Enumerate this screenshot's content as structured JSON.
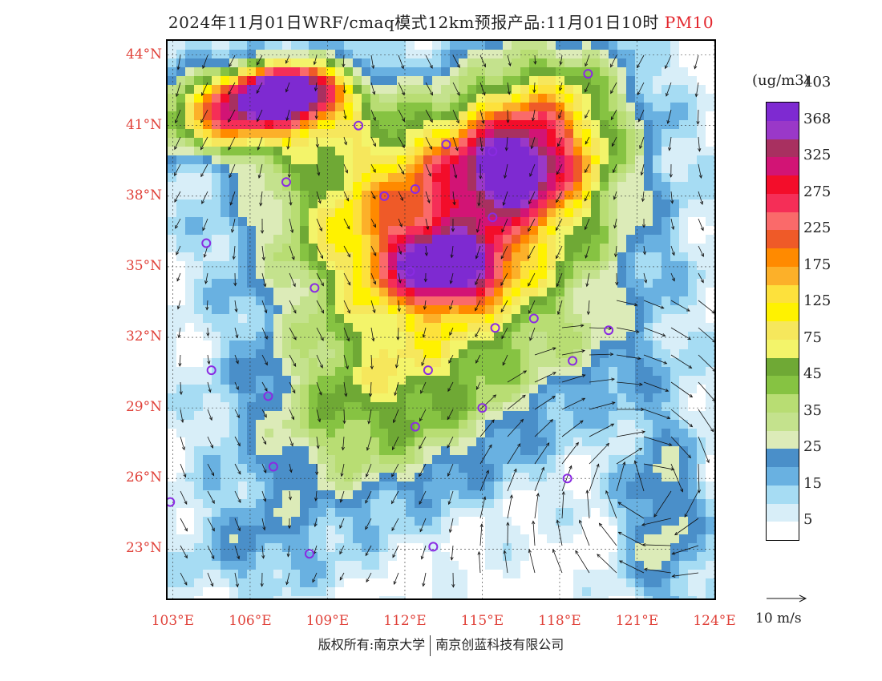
{
  "title": {
    "main": "2024年11月01日WRF/cmaq模式12km预报产品:11月01日10时",
    "pollutant": "PM10"
  },
  "map": {
    "lat_labels": [
      "44°N",
      "41°N",
      "38°N",
      "35°N",
      "32°N",
      "29°N",
      "26°N",
      "23°N"
    ],
    "lon_labels": [
      "103°E",
      "106°E",
      "109°E",
      "112°E",
      "115°E",
      "118°E",
      "121°E",
      "124°E"
    ],
    "lat_range": [
      20.9,
      44.6
    ],
    "lon_range": [
      102.8,
      124.0
    ],
    "stations": [
      [
        119.1,
        43.2
      ],
      [
        110.2,
        41.0
      ],
      [
        113.6,
        40.2
      ],
      [
        115.4,
        39.9
      ],
      [
        107.4,
        38.6
      ],
      [
        111.2,
        38.0
      ],
      [
        112.4,
        38.3
      ],
      [
        115.4,
        37.1
      ],
      [
        104.3,
        36.0
      ],
      [
        112.2,
        34.8
      ],
      [
        108.5,
        34.1
      ],
      [
        115.5,
        32.4
      ],
      [
        117.0,
        32.8
      ],
      [
        119.9,
        32.3
      ],
      [
        104.5,
        30.6
      ],
      [
        112.9,
        30.6
      ],
      [
        118.5,
        31.0
      ],
      [
        106.7,
        29.5
      ],
      [
        115.0,
        29.0
      ],
      [
        112.4,
        28.2
      ],
      [
        106.9,
        26.5
      ],
      [
        118.3,
        26.0
      ],
      [
        102.9,
        25.0
      ],
      [
        108.3,
        22.8
      ],
      [
        113.1,
        23.1
      ]
    ]
  },
  "legend": {
    "unit": "(ug/m3)",
    "colors": [
      "#ffffff",
      "#d8eef8",
      "#a6dcf3",
      "#69b1e1",
      "#4a8fc9",
      "#dcebb8",
      "#c4e28d",
      "#b8dd73",
      "#86c342",
      "#6fa935",
      "#f3f46a",
      "#f6e75c",
      "#fff200",
      "#fde13c",
      "#fcb029",
      "#ff8a00",
      "#ef5a28",
      "#fa6a6a",
      "#f52e57",
      "#f30d2a",
      "#d21475",
      "#a83060",
      "#9a38c8",
      "#7e2ad1"
    ],
    "labels": [
      "5",
      "15",
      "25",
      "35",
      "45",
      "75",
      "125",
      "175",
      "225",
      "275",
      "325",
      "368",
      "403"
    ],
    "vector_label": "10 m/s"
  },
  "footer": {
    "left": "版权所有:南京大学",
    "right": "南京创蓝科技有限公司"
  }
}
